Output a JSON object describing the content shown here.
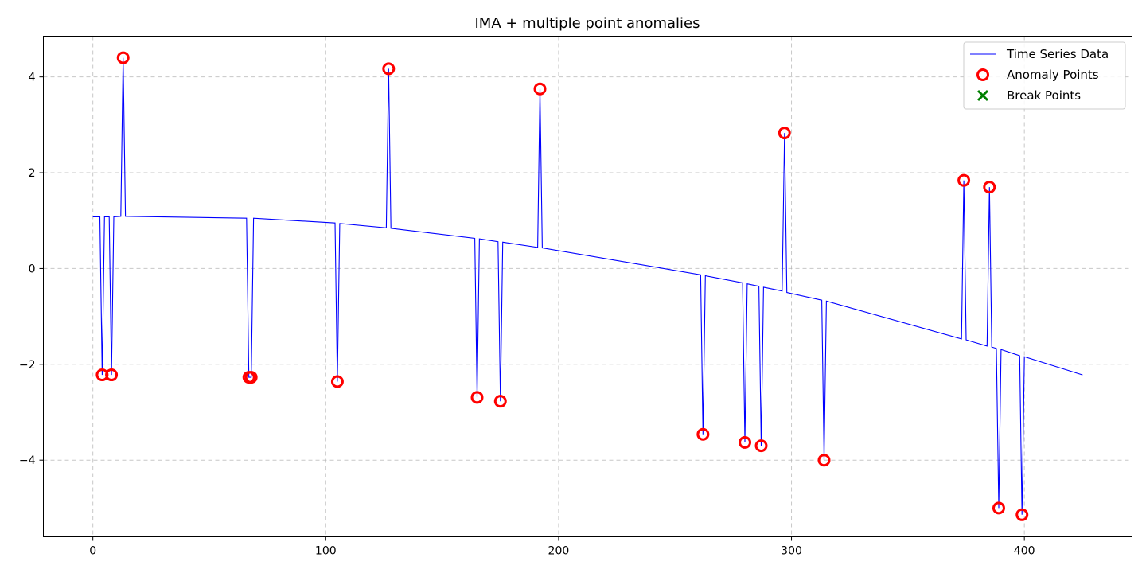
{
  "chart_data": {
    "type": "line",
    "title": "IMA + multiple point anomalies",
    "xlabel": "",
    "ylabel": "",
    "xlim": [
      -21.25,
      446.25
    ],
    "ylim": [
      -5.6,
      4.85
    ],
    "x_ticks": [
      0,
      100,
      200,
      300,
      400
    ],
    "y_ticks": [
      -4,
      -2,
      0,
      2,
      4
    ],
    "grid": true,
    "legend": {
      "placement": "top-right",
      "entries": [
        "Time Series Data",
        "Anomaly Points",
        "Break Points"
      ]
    },
    "series": [
      {
        "name": "Time Series Data",
        "kind": "line",
        "color": "#0000ff",
        "points": [
          [
            0,
            1.08
          ],
          [
            3,
            1.08
          ],
          [
            4,
            -2.22
          ],
          [
            5,
            1.08
          ],
          [
            7,
            1.08
          ],
          [
            8,
            -2.22
          ],
          [
            9,
            1.08
          ],
          [
            12,
            1.09
          ],
          [
            13,
            4.4
          ],
          [
            14,
            1.09
          ],
          [
            66,
            1.05
          ],
          [
            67,
            -2.27
          ],
          [
            68,
            -2.27
          ],
          [
            69,
            1.05
          ],
          [
            104,
            0.95
          ],
          [
            105,
            -2.36
          ],
          [
            106,
            0.94
          ],
          [
            126,
            0.85
          ],
          [
            127,
            4.17
          ],
          [
            128,
            0.84
          ],
          [
            164,
            0.63
          ],
          [
            165,
            -2.69
          ],
          [
            166,
            0.62
          ],
          [
            174,
            0.56
          ],
          [
            175,
            -2.77
          ],
          [
            176,
            0.55
          ],
          [
            191,
            0.44
          ],
          [
            192,
            3.75
          ],
          [
            193,
            0.43
          ],
          [
            261,
            -0.13
          ],
          [
            262,
            -3.46
          ],
          [
            263,
            -0.15
          ],
          [
            279,
            -0.3
          ],
          [
            280,
            -3.63
          ],
          [
            281,
            -0.32
          ],
          [
            286,
            -0.37
          ],
          [
            287,
            -3.7
          ],
          [
            288,
            -0.39
          ],
          [
            296,
            -0.47
          ],
          [
            297,
            2.83
          ],
          [
            298,
            -0.5
          ],
          [
            313,
            -0.66
          ],
          [
            314,
            -4.0
          ],
          [
            315,
            -0.68
          ],
          [
            373,
            -1.47
          ],
          [
            374,
            1.84
          ],
          [
            375,
            -1.49
          ],
          [
            384,
            -1.62
          ],
          [
            385,
            1.7
          ],
          [
            386,
            -1.64
          ],
          [
            388,
            -1.67
          ],
          [
            389,
            -5.0
          ],
          [
            390,
            -1.69
          ],
          [
            398,
            -1.82
          ],
          [
            399,
            -5.14
          ],
          [
            400,
            -1.84
          ],
          [
            425,
            -2.22
          ]
        ]
      },
      {
        "name": "Anomaly Points",
        "kind": "scatter",
        "marker": "circle",
        "color": "#ff0000",
        "points": [
          [
            4,
            -2.22
          ],
          [
            8,
            -2.22
          ],
          [
            13,
            4.4
          ],
          [
            67,
            -2.27
          ],
          [
            68,
            -2.27
          ],
          [
            105,
            -2.36
          ],
          [
            127,
            4.17
          ],
          [
            165,
            -2.69
          ],
          [
            175,
            -2.77
          ],
          [
            192,
            3.75
          ],
          [
            262,
            -3.46
          ],
          [
            280,
            -3.63
          ],
          [
            287,
            -3.7
          ],
          [
            297,
            2.83
          ],
          [
            314,
            -4.0
          ],
          [
            374,
            1.84
          ],
          [
            385,
            1.7
          ],
          [
            389,
            -5.0
          ],
          [
            399,
            -5.14
          ]
        ]
      },
      {
        "name": "Break Points",
        "kind": "scatter",
        "marker": "x",
        "color": "#008000",
        "points": []
      }
    ]
  }
}
